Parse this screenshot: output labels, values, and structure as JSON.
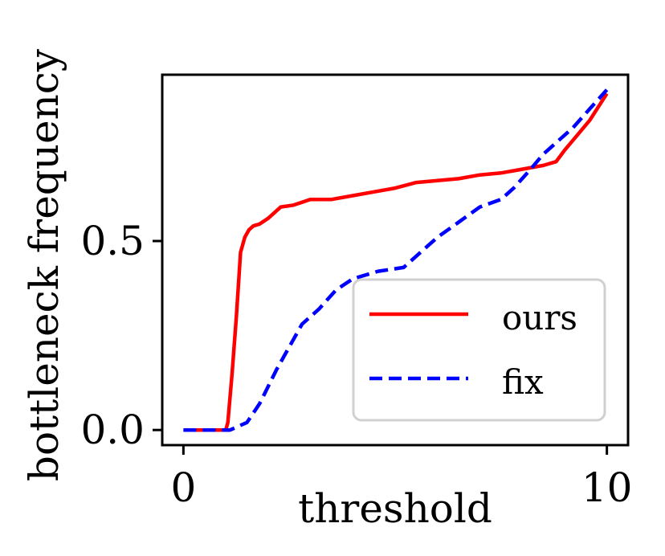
{
  "chart_data": {
    "type": "line",
    "title": "",
    "xlabel": "threshold",
    "ylabel": "bottleneck frequency",
    "xlim": [
      -0.5,
      10.5
    ],
    "ylim": [
      -0.04,
      0.94
    ],
    "xticks": [
      0,
      10
    ],
    "xtick_labels": [
      "0",
      "10"
    ],
    "yticks": [
      0.0,
      0.5
    ],
    "ytick_labels": [
      "0.0",
      "0.5"
    ],
    "grid": false,
    "legend_position": "lower-right",
    "series": [
      {
        "name": "ours",
        "color": "#ff0000",
        "dash": "solid",
        "x": [
          0,
          0.5,
          1.0,
          1.05,
          1.15,
          1.25,
          1.35,
          1.45,
          1.55,
          1.65,
          1.8,
          2.0,
          2.3,
          2.6,
          3.0,
          3.5,
          4.0,
          4.5,
          5.0,
          5.5,
          6.0,
          6.5,
          7.0,
          7.5,
          8.0,
          8.5,
          8.8,
          9.0,
          9.3,
          9.6,
          10.0
        ],
        "y": [
          0.0,
          0.0,
          0.0,
          0.02,
          0.15,
          0.3,
          0.47,
          0.51,
          0.53,
          0.54,
          0.545,
          0.56,
          0.59,
          0.595,
          0.61,
          0.61,
          0.62,
          0.63,
          0.64,
          0.655,
          0.66,
          0.665,
          0.675,
          0.68,
          0.69,
          0.7,
          0.71,
          0.74,
          0.78,
          0.82,
          0.89
        ]
      },
      {
        "name": "fix",
        "color": "#0000ff",
        "dash": "dashed",
        "x": [
          0,
          0.6,
          1.1,
          1.5,
          1.8,
          2.2,
          2.5,
          2.8,
          3.2,
          3.6,
          4.0,
          4.6,
          5.2,
          5.6,
          6.0,
          6.5,
          7.0,
          7.5,
          7.8,
          8.2,
          8.5,
          8.9,
          9.2,
          9.6,
          10.0
        ],
        "y": [
          0.0,
          0.0,
          0.0,
          0.02,
          0.07,
          0.16,
          0.22,
          0.28,
          0.32,
          0.37,
          0.4,
          0.42,
          0.43,
          0.47,
          0.51,
          0.55,
          0.59,
          0.61,
          0.64,
          0.69,
          0.73,
          0.77,
          0.8,
          0.85,
          0.9
        ]
      }
    ]
  }
}
